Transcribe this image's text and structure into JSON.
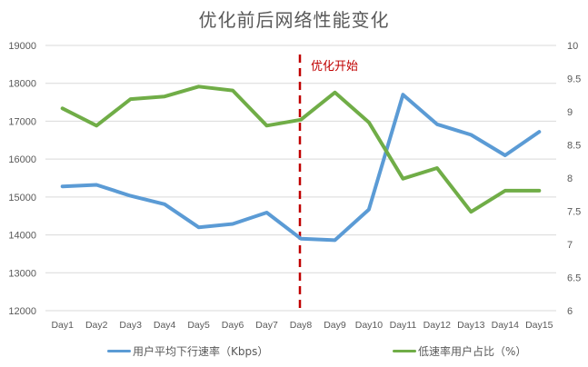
{
  "chart_data": {
    "type": "line",
    "title": "优化前后网络性能变化",
    "categories": [
      "Day1",
      "Day2",
      "Day3",
      "Day4",
      "Day5",
      "Day6",
      "Day7",
      "Day8",
      "Day9",
      "Day10",
      "Day11",
      "Day12",
      "Day13",
      "Day14",
      "Day15"
    ],
    "series": [
      {
        "name": "用户平均下行速率（Kbps）",
        "axis": "left",
        "color": "#5B9BD5",
        "values": [
          15280,
          15320,
          15030,
          14810,
          14200,
          14290,
          14590,
          13900,
          13860,
          14670,
          17700,
          16920,
          16640,
          16100,
          16720
        ]
      },
      {
        "name": "低速率用户占比（%）",
        "axis": "right",
        "color": "#70AD47",
        "values": [
          9.05,
          8.79,
          9.19,
          9.23,
          9.38,
          9.32,
          8.79,
          8.88,
          9.29,
          8.84,
          7.99,
          8.15,
          7.49,
          7.81,
          7.81
        ]
      }
    ],
    "y_left": {
      "min": 12000,
      "max": 19000,
      "ticks": [
        "12000",
        "13000",
        "14000",
        "15000",
        "16000",
        "17000",
        "18000",
        "19000"
      ]
    },
    "y_right": {
      "min": 6,
      "max": 10,
      "ticks": [
        "6",
        "6.5",
        "7",
        "7.5",
        "8",
        "8.5",
        "9",
        "9.5",
        "10"
      ]
    },
    "xlabel": "",
    "ylabel": "",
    "grid": true,
    "legend_position": "bottom",
    "annotation": {
      "text": "优化开始",
      "at_category": "Day8",
      "style": "dashed-vertical-line",
      "color": "#C00000"
    }
  },
  "legend": {
    "series1_label": "用户平均下行速率（Kbps）",
    "series2_label": "低速率用户占比（%）"
  }
}
